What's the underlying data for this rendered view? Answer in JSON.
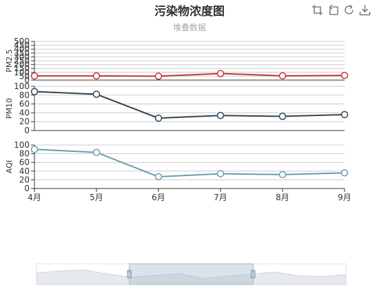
{
  "title": "污染物浓度图",
  "subtitle": "堆叠数据",
  "toolbox": [
    {
      "name": "zoom-icon"
    },
    {
      "name": "zoom-reset-icon"
    },
    {
      "name": "restore-icon"
    },
    {
      "name": "save-image-icon"
    }
  ],
  "chart_data": {
    "type": "line",
    "categories": [
      "4月",
      "5月",
      "6月",
      "7月",
      "8月",
      "9月"
    ],
    "panels": [
      {
        "ylabel": "PM2.5",
        "ylim": [
          0,
          500
        ],
        "ticks": [
          0,
          50,
          100,
          150,
          200,
          250,
          300,
          350,
          400,
          450,
          500
        ],
        "color": "#c23531",
        "values": [
          55,
          55,
          50,
          85,
          55,
          60
        ]
      },
      {
        "ylabel": "PM10",
        "ylim": [
          0,
          100
        ],
        "ticks": [
          0,
          20,
          40,
          60,
          80,
          100
        ],
        "color": "#2f4554",
        "values": [
          88,
          82,
          28,
          34,
          32,
          36
        ]
      },
      {
        "ylabel": "AQI",
        "ylim": [
          0,
          100
        ],
        "ticks": [
          0,
          20,
          40,
          60,
          80,
          100
        ],
        "color": "#61a0a8",
        "values": [
          90,
          83,
          27,
          34,
          32,
          36
        ]
      }
    ],
    "datazoom": {
      "start": 0.3,
      "end": 0.7
    }
  }
}
